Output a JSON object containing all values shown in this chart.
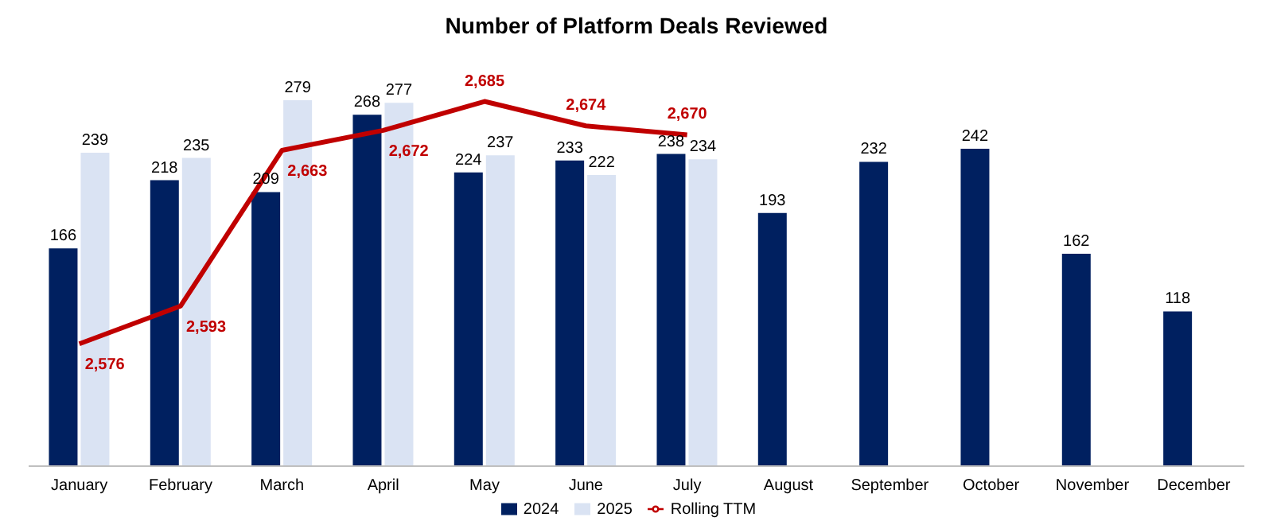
{
  "chart_data": {
    "type": "bar",
    "title": "Number of Platform Deals Reviewed",
    "categories": [
      "January",
      "February",
      "March",
      "April",
      "May",
      "June",
      "July",
      "August",
      "September",
      "October",
      "November",
      "December"
    ],
    "series": [
      {
        "name": "2024",
        "color": "#002060",
        "values": [
          166,
          218,
          209,
          268,
          224,
          233,
          238,
          193,
          232,
          242,
          162,
          118
        ]
      },
      {
        "name": "2025",
        "color": "#dae3f3",
        "values": [
          239,
          235,
          279,
          277,
          237,
          222,
          234,
          null,
          null,
          null,
          null,
          null
        ]
      },
      {
        "name": "Rolling TTM",
        "type": "line",
        "axis": "y2",
        "color": "#c00000",
        "values": [
          2576,
          2593,
          2663,
          2672,
          2685,
          2674,
          2670,
          null,
          null,
          null,
          null,
          null
        ],
        "value_labels": [
          "2,576",
          "2,593",
          "2,663",
          "2,672",
          "2,685",
          "2,674",
          "2,670",
          null,
          null,
          null,
          null,
          null
        ]
      }
    ],
    "data_labels": true,
    "legend": "bottom",
    "marker": "none"
  }
}
